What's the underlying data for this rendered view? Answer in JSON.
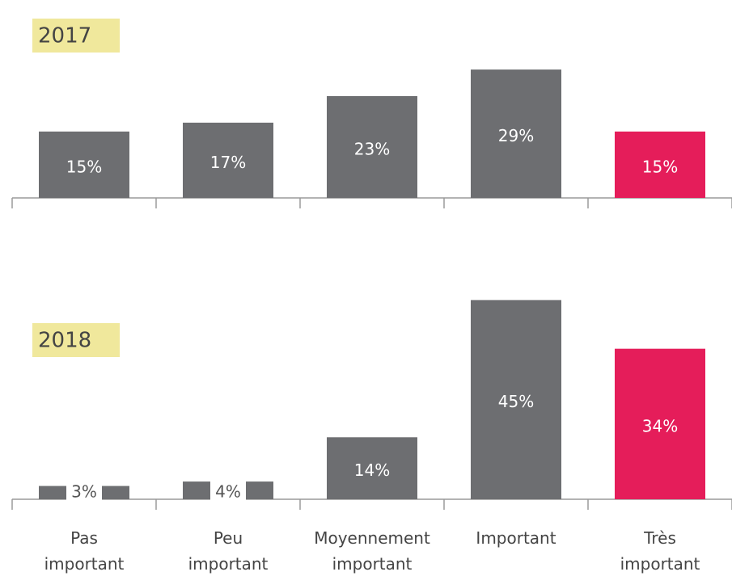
{
  "chart_data": [
    {
      "type": "bar",
      "title": "2017",
      "values": [
        15,
        17,
        23,
        29,
        15
      ],
      "value_labels": [
        "15%",
        "17%",
        "23%",
        "29%",
        "15%"
      ],
      "colors": [
        "#6d6e71",
        "#6d6e71",
        "#6d6e71",
        "#6d6e71",
        "#e51d5a"
      ]
    },
    {
      "type": "bar",
      "title": "2018",
      "categories": [
        "Pas\nimportant",
        "Peu\nimportant",
        "Moyennement\nimportant",
        "Important",
        "Très\nimportant"
      ],
      "values": [
        3,
        4,
        14,
        45,
        34
      ],
      "value_labels": [
        "3%",
        "4%",
        "14%",
        "45%",
        "34%"
      ],
      "colors": [
        "#6d6e71",
        "#6d6e71",
        "#6d6e71",
        "#6d6e71",
        "#e51d5a"
      ]
    }
  ]
}
